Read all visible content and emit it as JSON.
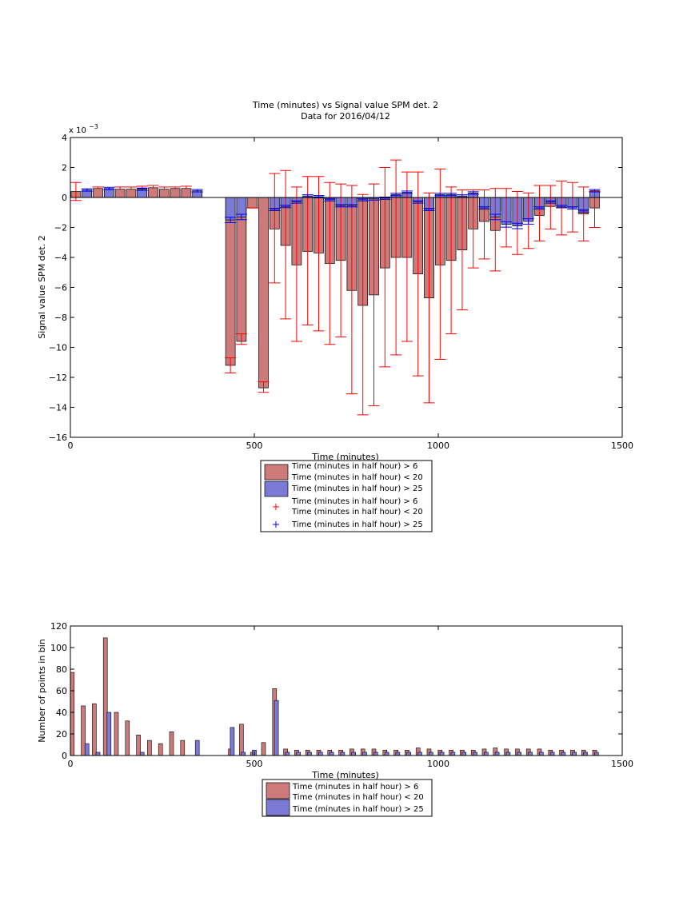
{
  "colors": {
    "red_fill": "#cc7a7a",
    "blue_fill": "#7b7bd6",
    "red_err": "#ff0000",
    "blue_err": "#0000ff"
  },
  "chart_data": [
    {
      "type": "bar",
      "title": "Time (minutes) vs Signal value SPM det. 2",
      "subtitle": "Data for 2016/04/12",
      "xlabel": "Time (minutes)",
      "ylabel": "Signal value SPM det. 2",
      "exponent_label": "x 10",
      "exponent_power": "−3",
      "xlim": [
        0,
        1500
      ],
      "ylim": [
        -16,
        4
      ],
      "xticks": [
        0,
        500,
        1000,
        1500
      ],
      "yticks": [
        -16,
        -14,
        -12,
        -10,
        -8,
        -6,
        -4,
        -2,
        0,
        2,
        4
      ],
      "grid": false,
      "legend_position": "below",
      "legend": [
        {
          "kind": "bar",
          "color": "red",
          "line1": "Time (minutes in half hour) > 6",
          "line2": "Time (minutes in half hour) < 20"
        },
        {
          "kind": "bar",
          "color": "blue",
          "line1": "Time (minutes in half hour) > 25",
          "line2": ""
        },
        {
          "kind": "marker",
          "color": "red",
          "line1": "Time (minutes in half hour) > 6",
          "line2": "Time (minutes in half hour) < 20"
        },
        {
          "kind": "marker",
          "color": "blue",
          "line1": "Time (minutes in half hour) > 25",
          "line2": ""
        }
      ],
      "series": [
        {
          "color": "red",
          "x": [
            15,
            75,
            135,
            165,
            195,
            225,
            255,
            285,
            315,
            435,
            465,
            495,
            525,
            555,
            585,
            615,
            645,
            675,
            705,
            735,
            765,
            795,
            825,
            855,
            885,
            915,
            945,
            975,
            1005,
            1035,
            1065,
            1095,
            1125,
            1155,
            1185,
            1215,
            1245,
            1275,
            1305,
            1335,
            1365,
            1395,
            1425
          ],
          "values": [
            0.4,
            0.6,
            0.55,
            0.55,
            0.6,
            0.65,
            0.55,
            0.6,
            0.6,
            -11.2,
            -9.6,
            -0.7,
            -12.7,
            -2.1,
            -3.2,
            -4.5,
            -3.6,
            -3.7,
            -4.4,
            -4.2,
            -6.2,
            -7.2,
            -6.5,
            -4.7,
            -4.0,
            -4.0,
            -5.1,
            -6.7,
            -4.5,
            -4.2,
            -3.5,
            -2.1,
            -1.6,
            -2.2,
            -0.9,
            -1.7,
            -1.5,
            -1.2,
            -0.6,
            -0.7,
            -0.6,
            -1.1,
            -0.7
          ],
          "err_low": [
            -0.2,
            null,
            null,
            null,
            null,
            null,
            null,
            null,
            null,
            -11.7,
            -9.8,
            -0.7,
            -13.0,
            -5.7,
            -8.1,
            -9.6,
            -8.5,
            -8.9,
            -9.8,
            -9.3,
            -13.1,
            -14.5,
            -13.9,
            -11.3,
            -10.5,
            -9.6,
            -11.9,
            -13.7,
            -10.8,
            -9.1,
            -7.5,
            -4.7,
            -4.1,
            -4.9,
            -3.3,
            -3.8,
            -3.4,
            -2.9,
            -2.1,
            -2.5,
            -2.3,
            -2.9,
            -2.0
          ],
          "err_high": [
            1.0,
            0.7,
            0.7,
            0.7,
            0.75,
            0.8,
            0.7,
            0.7,
            0.75,
            -10.7,
            -9.1,
            -0.7,
            -12.3,
            1.6,
            1.8,
            0.7,
            1.4,
            1.4,
            1.0,
            0.9,
            0.8,
            0.2,
            0.9,
            2.0,
            2.5,
            1.7,
            1.7,
            0.3,
            1.9,
            0.7,
            0.5,
            0.5,
            0.5,
            0.6,
            0.6,
            0.4,
            0.3,
            0.8,
            0.8,
            1.1,
            1.0,
            0.7,
            0.4
          ]
        },
        {
          "color": "blue",
          "x": [
            45,
            105,
            195,
            345,
            435,
            465,
            555,
            585,
            615,
            645,
            675,
            705,
            735,
            765,
            795,
            825,
            855,
            885,
            915,
            945,
            975,
            1005,
            1035,
            1065,
            1095,
            1125,
            1155,
            1185,
            1215,
            1245,
            1275,
            1305,
            1335,
            1365,
            1395,
            1425
          ],
          "values": [
            0.5,
            0.6,
            0.55,
            0.45,
            -1.5,
            -1.3,
            -0.8,
            -0.6,
            -0.3,
            0.1,
            0.05,
            -0.15,
            -0.55,
            -0.55,
            -0.15,
            -0.1,
            -0.05,
            0.2,
            0.35,
            -0.3,
            -0.8,
            0.2,
            0.2,
            0.1,
            0.3,
            -0.7,
            -1.3,
            -1.8,
            -1.9,
            -1.6,
            -0.7,
            -0.3,
            -0.6,
            -0.7,
            -0.9,
            0.45
          ]
        }
      ]
    },
    {
      "type": "bar",
      "xlabel": "Time (minutes)",
      "ylabel": "Number of points in bin",
      "xlim": [
        0,
        1500
      ],
      "ylim": [
        0,
        120
      ],
      "xticks": [
        0,
        500,
        1000,
        1500
      ],
      "yticks": [
        0,
        20,
        40,
        60,
        80,
        100,
        120
      ],
      "grid": false,
      "legend_position": "below",
      "legend": [
        {
          "kind": "bar",
          "color": "red",
          "line1": "Time (minutes in half hour) > 6",
          "line2": "Time (minutes in half hour) < 20"
        },
        {
          "kind": "bar",
          "color": "blue",
          "line1": "Time (minutes in half hour) > 25",
          "line2": ""
        }
      ],
      "series": [
        {
          "color": "red",
          "x": [
            5,
            35,
            65,
            95,
            125,
            155,
            185,
            215,
            245,
            275,
            305,
            435,
            465,
            495,
            525,
            555,
            585,
            615,
            645,
            675,
            705,
            735,
            765,
            795,
            825,
            855,
            885,
            915,
            945,
            975,
            1005,
            1035,
            1065,
            1095,
            1125,
            1155,
            1185,
            1215,
            1245,
            1275,
            1305,
            1335,
            1365,
            1395,
            1425
          ],
          "values": [
            77,
            46,
            48,
            109,
            40,
            32,
            19,
            14,
            11,
            22,
            14,
            6,
            29,
            3,
            12,
            62,
            6,
            5,
            5,
            5,
            5,
            5,
            6,
            6,
            6,
            5,
            5,
            5,
            7,
            6,
            5,
            5,
            5,
            5,
            6,
            7,
            6,
            6,
            6,
            6,
            5,
            5,
            5,
            5,
            5
          ]
        },
        {
          "color": "blue",
          "x": [
            45,
            75,
            105,
            195,
            345,
            440,
            470,
            500,
            560,
            590,
            620,
            650,
            680,
            710,
            740,
            770,
            800,
            830,
            860,
            890,
            920,
            950,
            980,
            1010,
            1040,
            1070,
            1100,
            1130,
            1160,
            1190,
            1220,
            1250,
            1280,
            1310,
            1340,
            1370,
            1400,
            1430
          ],
          "values": [
            11,
            3,
            40,
            3,
            14,
            26,
            3,
            5,
            51,
            3,
            3,
            3,
            3,
            3,
            3,
            3,
            3,
            3,
            3,
            3,
            3,
            3,
            3,
            3,
            3,
            3,
            3,
            3,
            3,
            3,
            3,
            3,
            3,
            3,
            3,
            3,
            3,
            3
          ]
        }
      ]
    }
  ]
}
